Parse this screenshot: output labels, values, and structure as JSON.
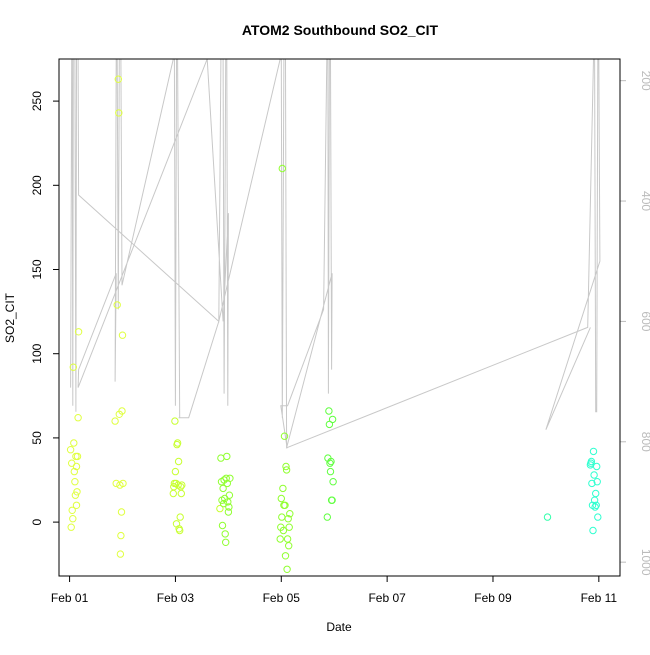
{
  "chart_data": {
    "type": "scatter",
    "title": "ATOM2 Southbound SO2_CIT",
    "xlabel": "Date",
    "ylabel": "SO2_CIT",
    "x_units": "days since Feb 01",
    "xlim": [
      -0.2,
      10.4
    ],
    "ylim": [
      -32,
      275
    ],
    "x_ticks": [
      {
        "value": 0,
        "label": "Feb 01"
      },
      {
        "value": 2,
        "label": "Feb 03"
      },
      {
        "value": 4,
        "label": "Feb 05"
      },
      {
        "value": 6,
        "label": "Feb 07"
      },
      {
        "value": 8,
        "label": "Feb 09"
      },
      {
        "value": 10,
        "label": "Feb 11"
      }
    ],
    "y_ticks": [
      0,
      50,
      100,
      150,
      200,
      250
    ],
    "y2_label": "",
    "y2_ticks": [
      200,
      400,
      600,
      800,
      1000
    ],
    "y2_range_top_to_bottom": [
      164,
      1023
    ],
    "series": [
      {
        "name": "SO2_CIT",
        "color_scale": [
          "#e0ff40",
          "#c8ff30",
          "#90ff30",
          "#60ff40",
          "#30ff60",
          "#30ffaa",
          "#30ffd0"
        ],
        "points": [
          {
            "x": 0.02,
            "y": 43
          },
          {
            "x": 0.04,
            "y": 35
          },
          {
            "x": 0.05,
            "y": 7
          },
          {
            "x": 0.03,
            "y": -3
          },
          {
            "x": 0.06,
            "y": 2
          },
          {
            "x": 0.08,
            "y": 47
          },
          {
            "x": 0.09,
            "y": 30
          },
          {
            "x": 0.1,
            "y": 24
          },
          {
            "x": 0.11,
            "y": 16
          },
          {
            "x": 0.12,
            "y": 39
          },
          {
            "x": 0.13,
            "y": 33
          },
          {
            "x": 0.14,
            "y": 18
          },
          {
            "x": 0.13,
            "y": 10
          },
          {
            "x": 0.15,
            "y": 39
          },
          {
            "x": 0.07,
            "y": 92
          },
          {
            "x": 0.17,
            "y": 113
          },
          {
            "x": 0.16,
            "y": 62
          },
          {
            "x": 0.86,
            "y": 60
          },
          {
            "x": 0.88,
            "y": 23
          },
          {
            "x": 0.9,
            "y": 129
          },
          {
            "x": 0.92,
            "y": 263
          },
          {
            "x": 0.93,
            "y": 243
          },
          {
            "x": 0.94,
            "y": 64
          },
          {
            "x": 0.95,
            "y": 22
          },
          {
            "x": 0.96,
            "y": -19
          },
          {
            "x": 0.97,
            "y": -8
          },
          {
            "x": 0.98,
            "y": 6
          },
          {
            "x": 0.99,
            "y": 66
          },
          {
            "x": 1.0,
            "y": 111
          },
          {
            "x": 1.01,
            "y": 23
          },
          {
            "x": 1.96,
            "y": 17
          },
          {
            "x": 1.97,
            "y": 21
          },
          {
            "x": 1.98,
            "y": 23
          },
          {
            "x": 1.99,
            "y": 60
          },
          {
            "x": 2.0,
            "y": 30
          },
          {
            "x": 2.01,
            "y": 23
          },
          {
            "x": 2.02,
            "y": -1
          },
          {
            "x": 2.03,
            "y": 46
          },
          {
            "x": 2.04,
            "y": 47
          },
          {
            "x": 2.05,
            "y": 22
          },
          {
            "x": 2.06,
            "y": 36
          },
          {
            "x": 2.07,
            "y": -4
          },
          {
            "x": 2.08,
            "y": -5
          },
          {
            "x": 2.09,
            "y": 3
          },
          {
            "x": 2.1,
            "y": 21
          },
          {
            "x": 2.11,
            "y": 17
          },
          {
            "x": 2.12,
            "y": 22
          },
          {
            "x": 2.84,
            "y": 8
          },
          {
            "x": 2.86,
            "y": 38
          },
          {
            "x": 2.87,
            "y": 24
          },
          {
            "x": 2.88,
            "y": 13
          },
          {
            "x": 2.89,
            "y": -2
          },
          {
            "x": 2.9,
            "y": 20
          },
          {
            "x": 2.91,
            "y": 11
          },
          {
            "x": 2.92,
            "y": 25
          },
          {
            "x": 2.93,
            "y": 14
          },
          {
            "x": 2.94,
            "y": -7
          },
          {
            "x": 2.95,
            "y": -12
          },
          {
            "x": 2.96,
            "y": 26
          },
          {
            "x": 2.97,
            "y": 39
          },
          {
            "x": 2.98,
            "y": 23
          },
          {
            "x": 2.99,
            "y": 12
          },
          {
            "x": 3.0,
            "y": 6
          },
          {
            "x": 3.01,
            "y": 9
          },
          {
            "x": 3.02,
            "y": 16
          },
          {
            "x": 3.03,
            "y": 26
          },
          {
            "x": 3.98,
            "y": -10
          },
          {
            "x": 3.99,
            "y": -3
          },
          {
            "x": 4.0,
            "y": 14
          },
          {
            "x": 4.01,
            "y": 3
          },
          {
            "x": 4.02,
            "y": 210
          },
          {
            "x": 4.03,
            "y": 20
          },
          {
            "x": 4.04,
            "y": -5
          },
          {
            "x": 4.05,
            "y": 10
          },
          {
            "x": 4.06,
            "y": 51
          },
          {
            "x": 4.07,
            "y": 10
          },
          {
            "x": 4.08,
            "y": -20
          },
          {
            "x": 4.09,
            "y": 33
          },
          {
            "x": 4.1,
            "y": 31
          },
          {
            "x": 4.11,
            "y": -28
          },
          {
            "x": 4.12,
            "y": -10
          },
          {
            "x": 4.13,
            "y": 2
          },
          {
            "x": 4.14,
            "y": -14
          },
          {
            "x": 4.15,
            "y": -3
          },
          {
            "x": 4.16,
            "y": 5
          },
          {
            "x": 4.87,
            "y": 3
          },
          {
            "x": 4.88,
            "y": 38
          },
          {
            "x": 4.9,
            "y": 66
          },
          {
            "x": 4.91,
            "y": 58
          },
          {
            "x": 4.92,
            "y": 35
          },
          {
            "x": 4.93,
            "y": 30
          },
          {
            "x": 4.94,
            "y": 36
          },
          {
            "x": 4.95,
            "y": 13
          },
          {
            "x": 4.96,
            "y": 13
          },
          {
            "x": 4.97,
            "y": 61
          },
          {
            "x": 4.98,
            "y": 24
          },
          {
            "x": 9.03,
            "y": 3
          },
          {
            "x": 9.84,
            "y": 34
          },
          {
            "x": 9.85,
            "y": 35
          },
          {
            "x": 9.86,
            "y": 36
          },
          {
            "x": 9.87,
            "y": 23
          },
          {
            "x": 9.88,
            "y": 10
          },
          {
            "x": 9.89,
            "y": -5
          },
          {
            "x": 9.9,
            "y": 42
          },
          {
            "x": 9.91,
            "y": 28
          },
          {
            "x": 9.92,
            "y": 13
          },
          {
            "x": 9.93,
            "y": 9
          },
          {
            "x": 9.94,
            "y": 17
          },
          {
            "x": 9.95,
            "y": 10
          },
          {
            "x": 9.96,
            "y": 33
          },
          {
            "x": 9.97,
            "y": 24
          },
          {
            "x": 9.98,
            "y": 3
          }
        ]
      }
    ],
    "altitude_trace": {
      "name": "pressure",
      "axis": "right",
      "color": "#c8c8c8",
      "points": [
        [
          0.02,
          710
        ],
        [
          0.04,
          164
        ],
        [
          0.05,
          164
        ],
        [
          0.06,
          740
        ],
        [
          0.07,
          164
        ],
        [
          0.1,
          164
        ],
        [
          0.12,
          750
        ],
        [
          0.13,
          164
        ],
        [
          0.16,
          164
        ],
        [
          0.17,
          390
        ],
        [
          2.82,
          600
        ],
        [
          2.86,
          164
        ],
        [
          2.9,
          164
        ],
        [
          2.92,
          720
        ],
        [
          2.95,
          164
        ],
        [
          2.97,
          164
        ],
        [
          2.99,
          740
        ],
        [
          3.0,
          420
        ],
        [
          2.9,
          600
        ],
        [
          2.6,
          164
        ],
        [
          0.16,
          710
        ],
        [
          0.17,
          680
        ],
        [
          0.88,
          520
        ],
        [
          0.86,
          700
        ],
        [
          0.88,
          164
        ],
        [
          0.9,
          164
        ],
        [
          0.92,
          580
        ],
        [
          0.94,
          164
        ],
        [
          0.97,
          164
        ],
        [
          0.99,
          540
        ],
        [
          1.96,
          164
        ],
        [
          1.98,
          164
        ],
        [
          2.0,
          740
        ],
        [
          2.02,
          164
        ],
        [
          2.04,
          164
        ],
        [
          2.08,
          760
        ],
        [
          2.06,
          760
        ],
        [
          2.1,
          760
        ],
        [
          2.2,
          760
        ],
        [
          2.25,
          760
        ],
        [
          2.82,
          600
        ],
        [
          3.98,
          164
        ],
        [
          4.0,
          164
        ],
        [
          4.02,
          760
        ],
        [
          4.05,
          164
        ],
        [
          4.08,
          164
        ],
        [
          4.1,
          810
        ],
        [
          4.11,
          810
        ],
        [
          3.99,
          740
        ],
        [
          4.12,
          740
        ],
        [
          4.8,
          580
        ],
        [
          4.86,
          164
        ],
        [
          4.88,
          164
        ],
        [
          4.89,
          720
        ],
        [
          4.91,
          164
        ],
        [
          4.93,
          164
        ],
        [
          4.95,
          680
        ],
        [
          4.96,
          520
        ],
        [
          4.1,
          810
        ],
        [
          9.79,
          610
        ],
        [
          9.9,
          164
        ],
        [
          9.92,
          164
        ],
        [
          9.94,
          750
        ],
        [
          9.96,
          750
        ],
        [
          9.98,
          164
        ],
        [
          10.0,
          164
        ],
        [
          10.02,
          500
        ],
        [
          9.0,
          780
        ],
        [
          9.84,
          610
        ]
      ]
    }
  }
}
